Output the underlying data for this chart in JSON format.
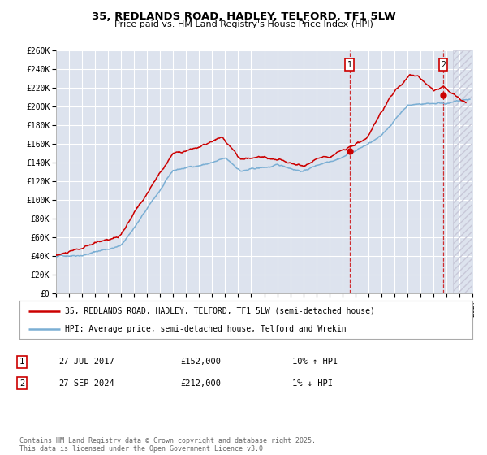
{
  "title": "35, REDLANDS ROAD, HADLEY, TELFORD, TF1 5LW",
  "subtitle": "Price paid vs. HM Land Registry's House Price Index (HPI)",
  "ylim": [
    0,
    260000
  ],
  "xlim_start": 1995.0,
  "xlim_end": 2027.0,
  "yticks": [
    0,
    20000,
    40000,
    60000,
    80000,
    100000,
    120000,
    140000,
    160000,
    180000,
    200000,
    220000,
    240000,
    260000
  ],
  "ytick_labels": [
    "£0",
    "£20K",
    "£40K",
    "£60K",
    "£80K",
    "£100K",
    "£120K",
    "£140K",
    "£160K",
    "£180K",
    "£200K",
    "£220K",
    "£240K",
    "£260K"
  ],
  "red_color": "#cc0000",
  "blue_color": "#7bafd4",
  "marker1_date": 2017.57,
  "marker1_value": 152000,
  "marker1_label": "1",
  "marker2_date": 2024.75,
  "marker2_value": 212000,
  "marker2_label": "2",
  "vline1_x": 2017.57,
  "vline2_x": 2024.75,
  "legend_red_label": "35, REDLANDS ROAD, HADLEY, TELFORD, TF1 5LW (semi-detached house)",
  "legend_blue_label": "HPI: Average price, semi-detached house, Telford and Wrekin",
  "table_row1": [
    "1",
    "27-JUL-2017",
    "£152,000",
    "10% ↑ HPI"
  ],
  "table_row2": [
    "2",
    "27-SEP-2024",
    "£212,000",
    "1% ↓ HPI"
  ],
  "footer": "Contains HM Land Registry data © Crown copyright and database right 2025.\nThis data is licensed under the Open Government Licence v3.0.",
  "background_color": "#ffffff",
  "plot_background": "#dde3ee",
  "grid_color": "#ffffff",
  "hatch_color": "#c8c8d8"
}
